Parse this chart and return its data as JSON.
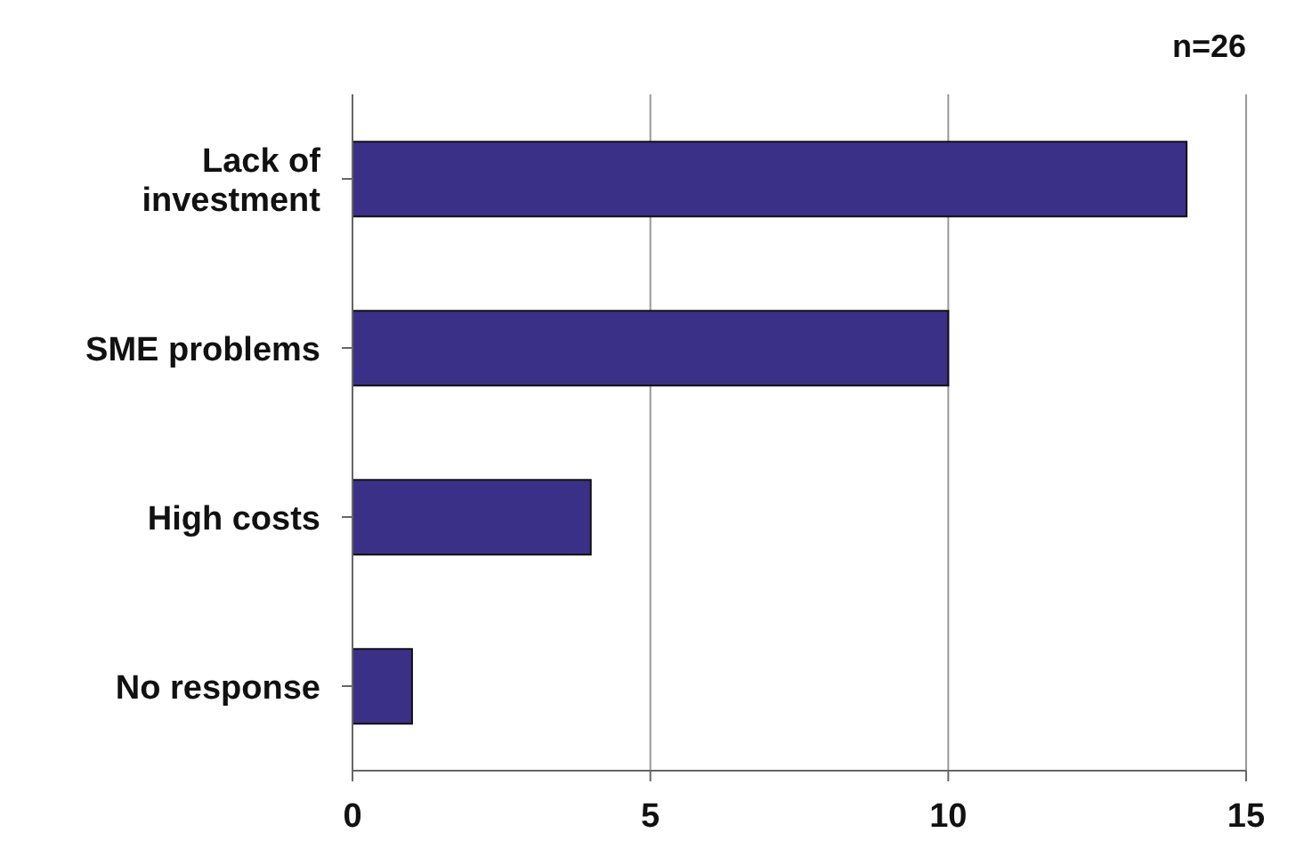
{
  "chart_data": {
    "type": "bar",
    "orientation": "horizontal",
    "categories": [
      "Lack of investment",
      "SME problems",
      "High costs",
      "No response"
    ],
    "values": [
      14,
      10,
      4,
      1
    ],
    "color": "#3b3087",
    "xlim": [
      0,
      15
    ],
    "xticks": [
      0,
      5,
      10,
      15
    ],
    "grid": "x",
    "annotations": [
      "n=26"
    ]
  }
}
